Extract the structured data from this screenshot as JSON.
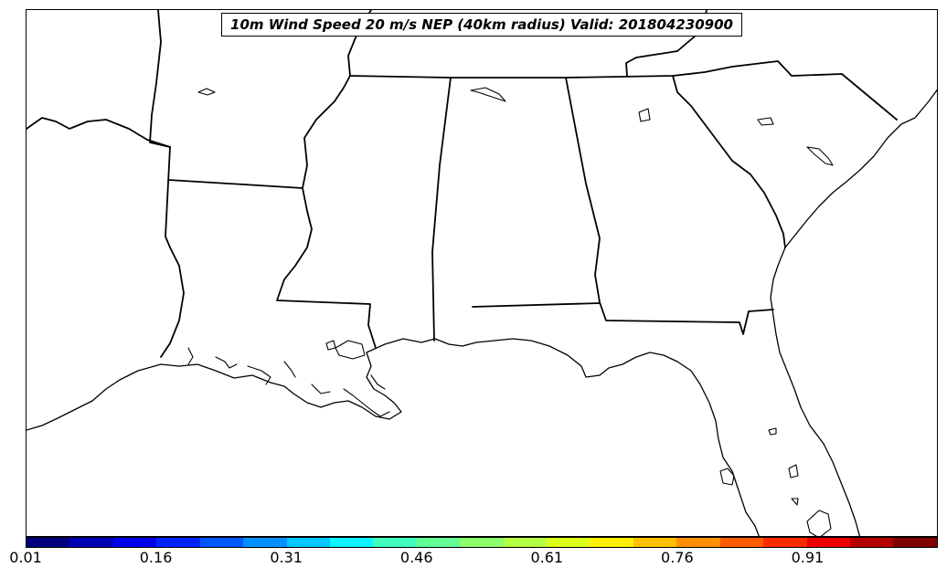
{
  "title": "10m Wind Speed 20 m/s NEP (40km radius) Valid: 201804230900",
  "colorbar": {
    "ticks": [
      "0.01",
      "0.16",
      "0.31",
      "0.46",
      "0.61",
      "0.76",
      "0.91"
    ],
    "colors": [
      "#00007f",
      "#0000b4",
      "#0000ee",
      "#0022ff",
      "#0058ff",
      "#0090ff",
      "#00c8ff",
      "#0cf4ff",
      "#3effbe",
      "#62ff94",
      "#8cff6a",
      "#b4ff42",
      "#dcff1a",
      "#ffee00",
      "#ffc000",
      "#ff9000",
      "#ff5c00",
      "#ff2a00",
      "#ee0000",
      "#b40000",
      "#7f0000"
    ]
  },
  "map": {
    "region": "Southeastern United States",
    "field": "NEP probability",
    "shading": "none visible"
  }
}
